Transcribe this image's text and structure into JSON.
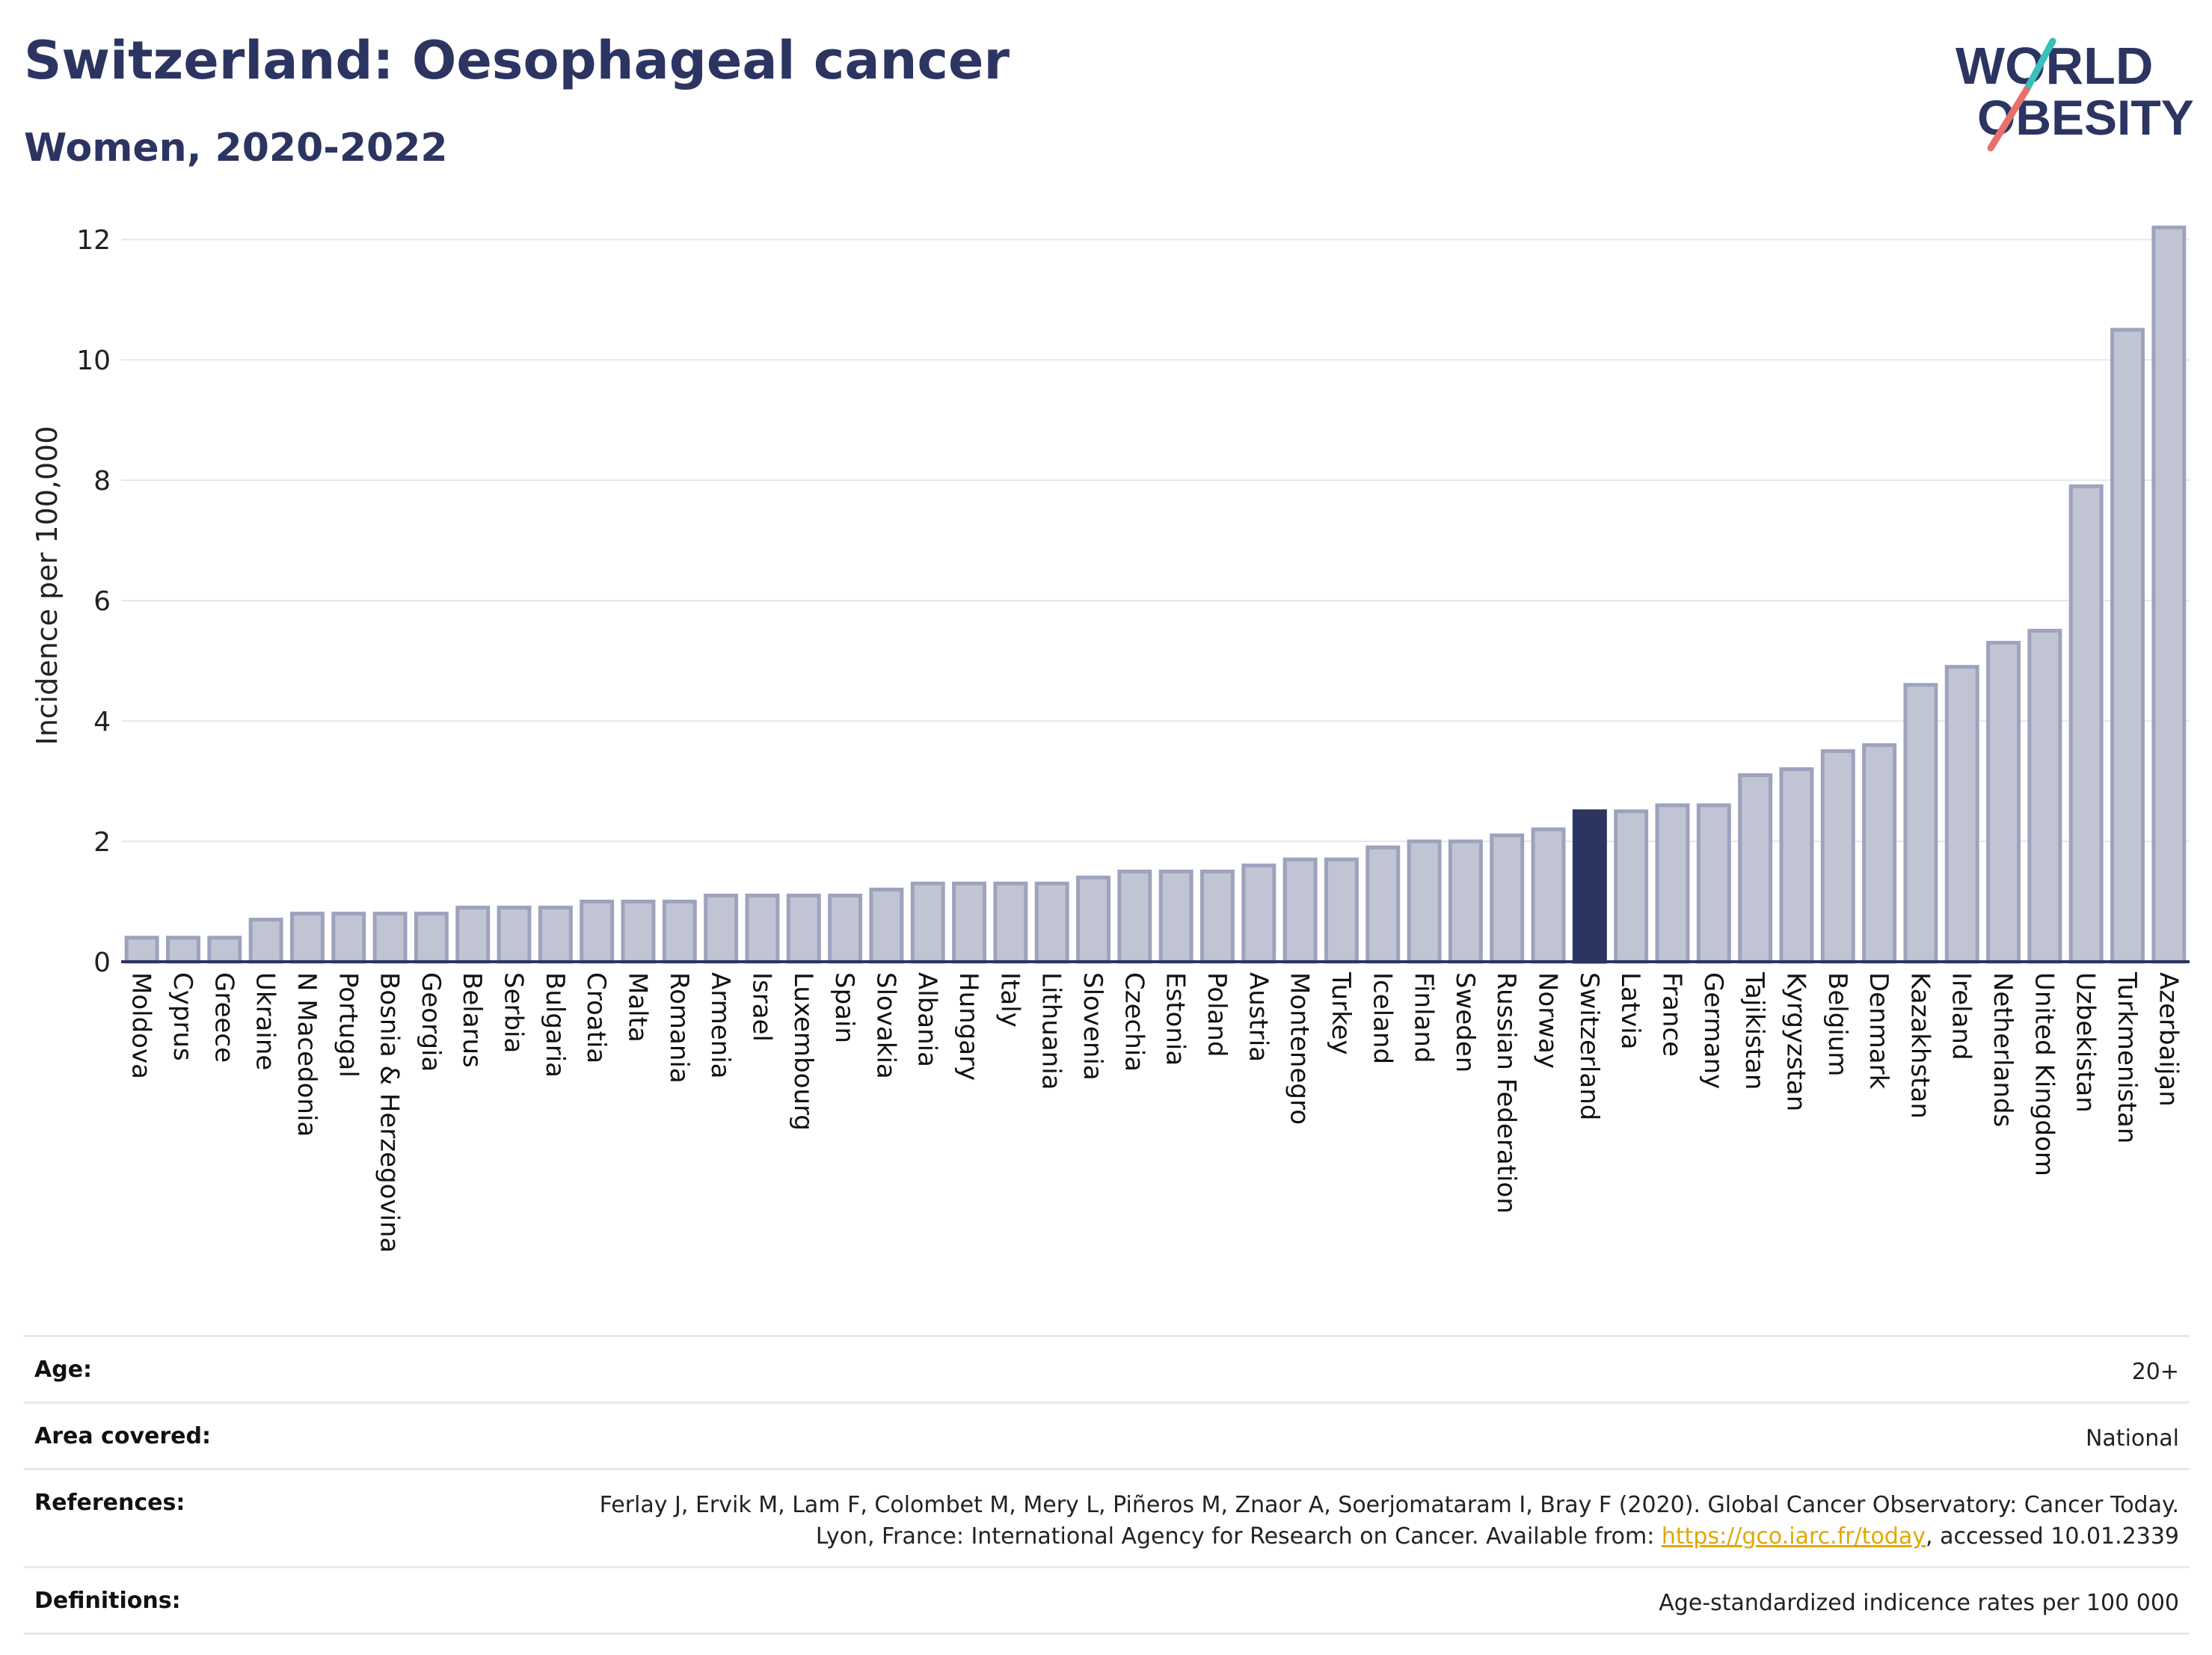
{
  "header": {
    "title": "Switzerland: Oesophageal cancer",
    "subtitle": "Women, 2020-2022"
  },
  "logo": {
    "line1": "WORLD",
    "line2": "OBESITY"
  },
  "chart_data": {
    "type": "bar",
    "title": "Switzerland: Oesophageal cancer",
    "subtitle": "Women, 2020-2022",
    "ylabel": "Incidence per 100,000",
    "xlabel": "",
    "ylim": [
      0,
      12.5
    ],
    "yticks": [
      0,
      2,
      4,
      6,
      8,
      10,
      12
    ],
    "grid": true,
    "highlight": "Switzerland",
    "colors": {
      "bar": "#c0c4d3",
      "bar_edge": "#9da3bd",
      "highlight": "#2c3461",
      "grid": "#e6e7ee"
    },
    "categories": [
      "Moldova",
      "Cyprus",
      "Greece",
      "Ukraine",
      "N Macedonia",
      "Portugal",
      "Bosnia & Herzegovina",
      "Georgia",
      "Belarus",
      "Serbia",
      "Bulgaria",
      "Croatia",
      "Malta",
      "Romania",
      "Armenia",
      "Israel",
      "Luxembourg",
      "Spain",
      "Slovakia",
      "Albania",
      "Hungary",
      "Italy",
      "Lithuania",
      "Slovenia",
      "Czechia",
      "Estonia",
      "Poland",
      "Austria",
      "Montenegro",
      "Turkey",
      "Iceland",
      "Finland",
      "Sweden",
      "Russian Federation",
      "Norway",
      "Switzerland",
      "Latvia",
      "France",
      "Germany",
      "Tajikistan",
      "Kyrgyzstan",
      "Belgium",
      "Denmark",
      "Kazakhstan",
      "Ireland",
      "Netherlands",
      "United Kingdom",
      "Uzbekistan",
      "Turkmenistan",
      "Azerbaijan"
    ],
    "values": [
      0.4,
      0.4,
      0.4,
      0.7,
      0.8,
      0.8,
      0.8,
      0.8,
      0.9,
      0.9,
      0.9,
      1.0,
      1.0,
      1.0,
      1.1,
      1.1,
      1.1,
      1.1,
      1.2,
      1.3,
      1.3,
      1.3,
      1.3,
      1.4,
      1.5,
      1.5,
      1.5,
      1.6,
      1.7,
      1.7,
      1.9,
      2.0,
      2.0,
      2.1,
      2.2,
      2.5,
      2.5,
      2.6,
      2.6,
      3.1,
      3.2,
      3.5,
      3.6,
      4.6,
      4.9,
      5.3,
      5.5,
      7.9,
      10.5,
      12.2
    ]
  },
  "info": {
    "age_label": "Age:",
    "age_value": "20+",
    "area_label": "Area covered:",
    "area_value": "National",
    "references_label": "References:",
    "references_text_1": "Ferlay J, Ervik M, Lam F, Colombet M, Mery L, Piñeros M, Znaor A, Soerjomataram I, Bray F (2020). Global Cancer Observatory: Cancer Today. Lyon, France: International Agency for Research on Cancer. Available from: ",
    "references_link": "https://gco.iarc.fr/today",
    "references_text_2": ", accessed 10.01.2339",
    "definitions_label": "Definitions:",
    "definitions_value": "Age-standardized indicence rates per 100 000"
  }
}
